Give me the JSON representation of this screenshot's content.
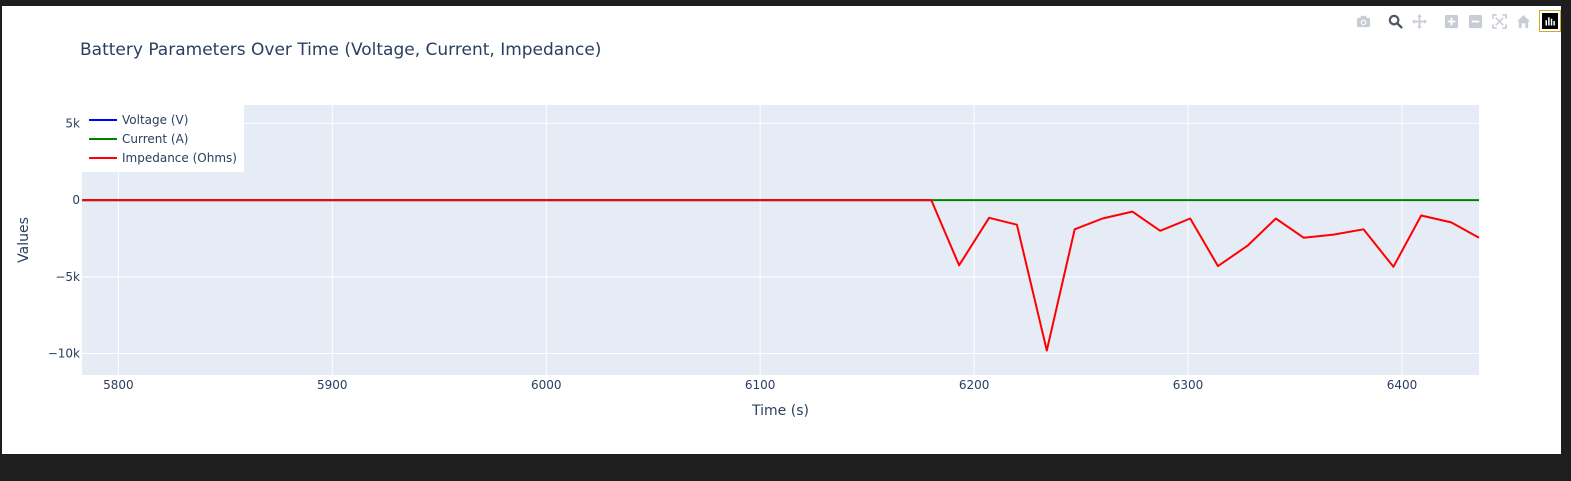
{
  "modebar": {
    "buttons": [
      {
        "icon": "camera-icon"
      },
      {
        "icon": "zoom-icon"
      },
      {
        "icon": "pan-icon"
      },
      {
        "icon": "zoom-in-icon"
      },
      {
        "icon": "zoom-out-icon"
      },
      {
        "icon": "autoscale-icon"
      },
      {
        "icon": "home-icon"
      },
      {
        "icon": "plotly-logo-icon"
      }
    ]
  },
  "colors": {
    "plot_bg": "#e5ecf6",
    "grid": "#ffffff",
    "text": "#2a3f5f",
    "voltage": "#0000ff",
    "current": "#008000",
    "impedance": "#ff0000"
  },
  "chart_data": {
    "type": "line",
    "title": "Battery Parameters Over Time (Voltage, Current, Impedance)",
    "xlabel": "Time (s)",
    "ylabel": "Values",
    "xlim": [
      5783,
      6436
    ],
    "ylim": [
      -11400,
      6200
    ],
    "x_ticks": [
      5800,
      5900,
      6000,
      6100,
      6200,
      6300,
      6400
    ],
    "y_ticks": [
      5000,
      0,
      -5000,
      -10000
    ],
    "y_tick_labels": [
      "5k",
      "0",
      "−5k",
      "−10k"
    ],
    "grid": true,
    "legend_position": "top-left",
    "series": [
      {
        "name": "Voltage (V)",
        "color": "#0000ff",
        "x": [
          5783,
          6180
        ],
        "y": [
          0,
          0
        ]
      },
      {
        "name": "Current (A)",
        "color": "#008000",
        "x": [
          5783,
          6436
        ],
        "y": [
          0,
          0
        ]
      },
      {
        "name": "Impedance (Ohms)",
        "color": "#ff0000",
        "x": [
          5783,
          6180,
          6193,
          6207,
          6220,
          6234,
          6247,
          6260,
          6274,
          6287,
          6301,
          6314,
          6328,
          6341,
          6354,
          6368,
          6382,
          6396,
          6409,
          6423,
          6436
        ],
        "y": [
          0,
          0,
          -4250,
          -1150,
          -1600,
          -9800,
          -1900,
          -1200,
          -750,
          -2000,
          -1200,
          -4300,
          -2950,
          -1200,
          -2450,
          -2250,
          -1900,
          -4350,
          -1000,
          -1450,
          -2450
        ]
      }
    ]
  }
}
